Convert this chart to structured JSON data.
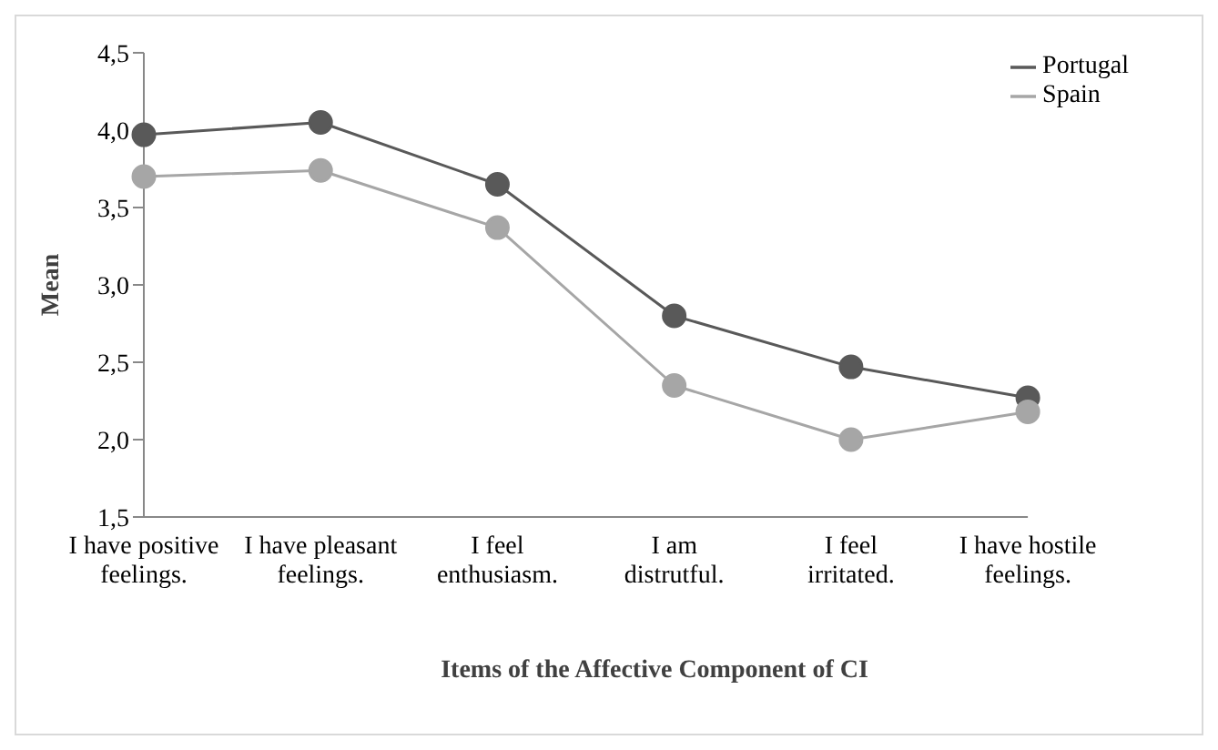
{
  "chart_data": {
    "type": "line",
    "xlabel": "Items of the Affective Component of CI",
    "ylabel": "Mean",
    "categories": [
      "I have positive feelings.",
      "I have pleasant feelings.",
      "I feel enthusiasm.",
      "I am distrutful.",
      "I feel irritated.",
      "I have hostile feelings."
    ],
    "series": [
      {
        "name": "Portugal",
        "color": "#595959",
        "values": [
          3.97,
          4.05,
          3.65,
          2.8,
          2.47,
          2.27
        ]
      },
      {
        "name": "Spain",
        "color": "#a6a6a6",
        "values": [
          3.7,
          3.74,
          3.37,
          2.35,
          2.0,
          2.18
        ]
      }
    ],
    "ylim": [
      1.5,
      4.5
    ],
    "yticks": [
      {
        "value": 1.5,
        "label": "1,5"
      },
      {
        "value": 2,
        "label": "2,0"
      },
      {
        "value": 2.5,
        "label": "2,5"
      },
      {
        "value": 3,
        "label": "3,0"
      },
      {
        "value": 3.5,
        "label": "3,5"
      },
      {
        "value": 4,
        "label": "4,0"
      },
      {
        "value": 4.5,
        "label": "4,5"
      }
    ],
    "grid": false,
    "legend": "top right",
    "marker": "circle",
    "line_style": "solid"
  }
}
